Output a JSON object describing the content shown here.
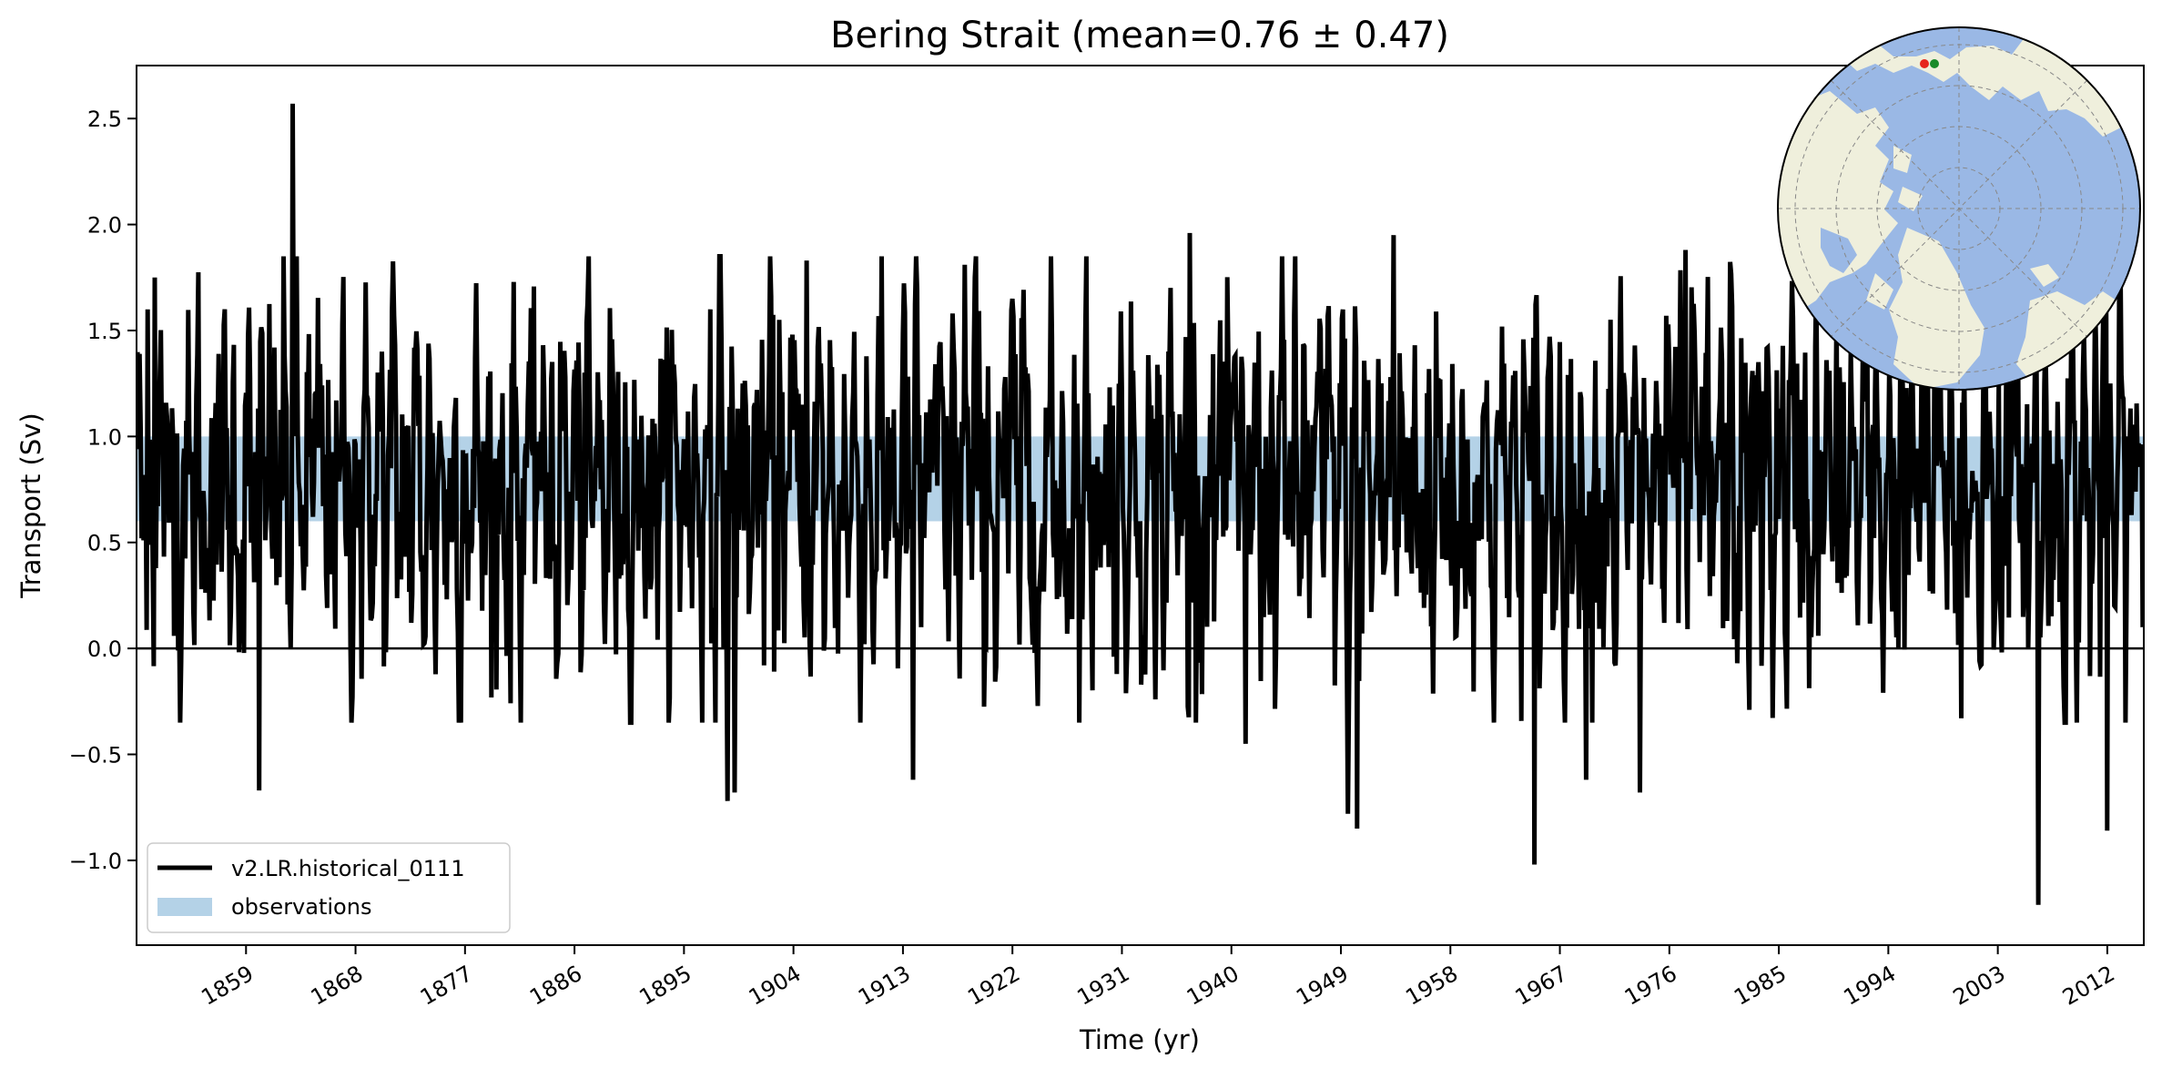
{
  "chart_data": {
    "type": "line",
    "title": "Bering Strait (mean=0.76 ± 0.47)",
    "xlabel": "Time (yr)",
    "ylabel": "Transport (Sv)",
    "xlim": [
      1850,
      2015
    ],
    "ylim": [
      -1.4,
      2.75
    ],
    "x_ticks": [
      1859,
      1868,
      1877,
      1886,
      1895,
      1904,
      1913,
      1922,
      1931,
      1940,
      1949,
      1958,
      1967,
      1976,
      1985,
      1994,
      2003,
      2012
    ],
    "y_ticks": [
      -1.0,
      -0.5,
      0.0,
      0.5,
      1.0,
      1.5,
      2.0,
      2.5
    ],
    "y_tick_labels": [
      "−1.0",
      "−0.5",
      "0.0",
      "0.5",
      "1.0",
      "1.5",
      "2.0",
      "2.5"
    ],
    "grid": false,
    "zero_line": 0.0,
    "legend": {
      "placement": "lower-left",
      "entries": [
        "v2.LR.historical_0111",
        "observations"
      ]
    },
    "series": [
      {
        "name": "v2.LR.historical_0111",
        "color": "#000000",
        "x_start": 1850.0,
        "x_step": 0.08333,
        "summary": {
          "mean": 0.76,
          "std": 0.47
        },
        "extremes": [
          {
            "x": 1862.8,
            "y": 2.57
          },
          {
            "x": 1850.9,
            "y": 1.6
          },
          {
            "x": 1851.5,
            "y": 1.75
          },
          {
            "x": 1860.1,
            "y": -0.67
          },
          {
            "x": 1897.2,
            "y": 1.6
          },
          {
            "x": 1898.6,
            "y": -0.72
          },
          {
            "x": 1899.2,
            "y": -0.68
          },
          {
            "x": 1902.8,
            "y": 1.55
          },
          {
            "x": 1905.1,
            "y": 1.83
          },
          {
            "x": 1913.8,
            "y": -0.62
          },
          {
            "x": 1918.1,
            "y": 1.81
          },
          {
            "x": 1936.6,
            "y": 1.96
          },
          {
            "x": 1941.2,
            "y": -0.45
          },
          {
            "x": 1949.6,
            "y": -0.78
          },
          {
            "x": 1950.3,
            "y": -0.85
          },
          {
            "x": 1953.3,
            "y": 1.95
          },
          {
            "x": 1964.9,
            "y": -1.02
          },
          {
            "x": 1969.2,
            "y": -0.62
          },
          {
            "x": 1973.6,
            "y": -0.68
          },
          {
            "x": 1977.3,
            "y": 1.88
          },
          {
            "x": 2000.0,
            "y": -0.33
          },
          {
            "x": 2006.3,
            "y": -1.21
          },
          {
            "x": 2012.0,
            "y": -0.86
          }
        ]
      },
      {
        "name": "observations",
        "type": "band",
        "color": "#b4d2e7",
        "ymin": 0.6,
        "ymax": 1.0
      }
    ],
    "inset_map": {
      "projection": "north-polar-stereographic",
      "ocean_color": "#9ab8e5",
      "land_color": "#efefdc",
      "markers": [
        {
          "label": "red-dot",
          "color": "#e6251d"
        },
        {
          "label": "green-dot",
          "color": "#1a8a2a"
        }
      ]
    }
  }
}
